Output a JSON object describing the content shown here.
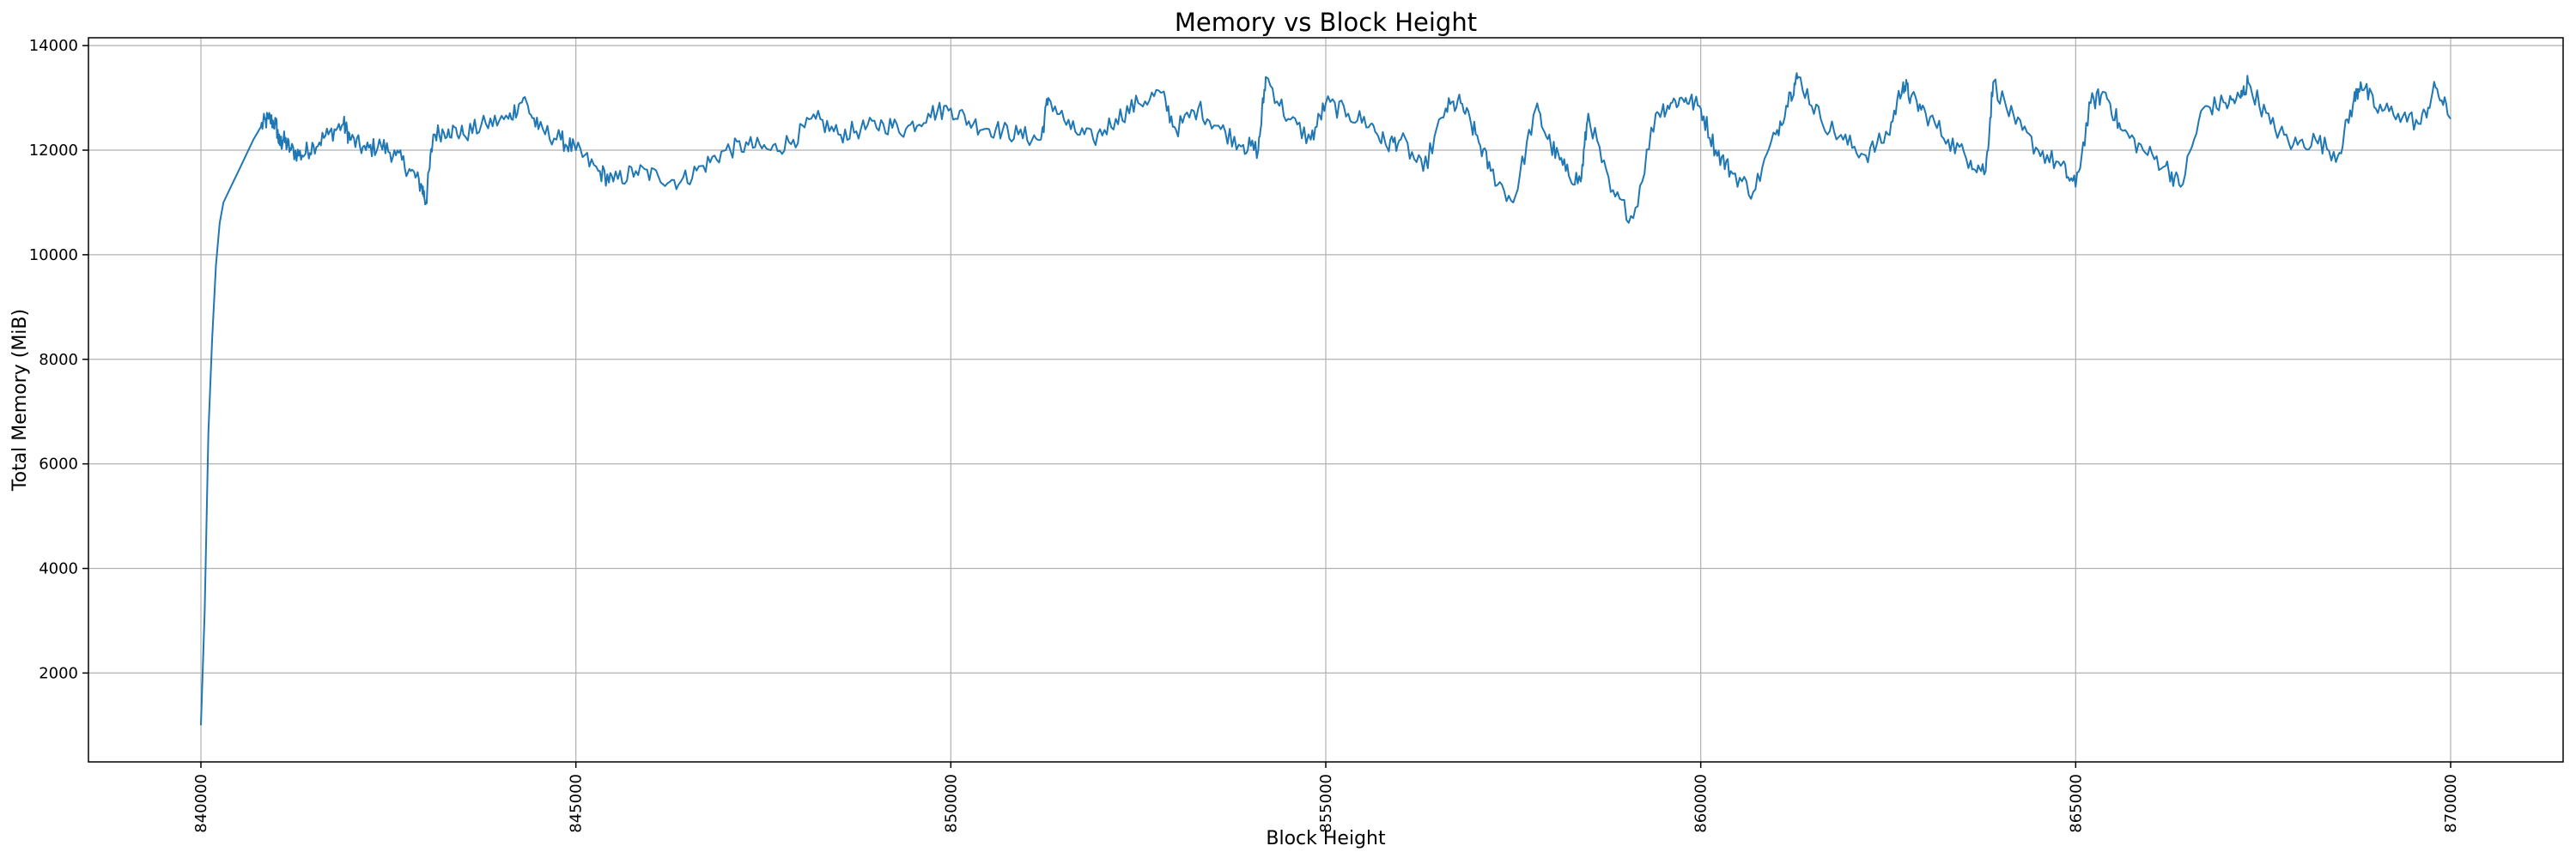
{
  "chart_data": {
    "type": "line",
    "title": "Memory vs Block Height",
    "xlabel": "Block Height",
    "ylabel": "Total Memory (MiB)",
    "xlim": [
      838500,
      871500
    ],
    "ylim": [
      300,
      14150
    ],
    "xticks": [
      840000,
      845000,
      850000,
      855000,
      860000,
      865000,
      870000
    ],
    "yticks": [
      2000,
      4000,
      6000,
      8000,
      10000,
      12000,
      14000
    ],
    "xtick_rotation": "vertical",
    "grid": true,
    "legend": "none",
    "series": [
      {
        "color": "#1f77b4",
        "x": [
          840000,
          840050,
          840100,
          840150,
          840200,
          840250,
          840300,
          840400,
          840500,
          840600,
          840700,
          840800,
          840900,
          841000,
          841050,
          841100,
          841200,
          841350,
          841500,
          841700,
          841900,
          842000,
          842200,
          842400,
          842600,
          842800,
          842950,
          843000,
          843100,
          843300,
          843500,
          843800,
          844100,
          844300,
          844500,
          844800,
          845000,
          845300,
          845500,
          845800,
          846100,
          846400,
          846700,
          847000,
          847300,
          847600,
          847900,
          848200,
          848500,
          848800,
          849100,
          849400,
          849700,
          850000,
          850300,
          850600,
          850900,
          851200,
          851300,
          851600,
          851900,
          852200,
          852500,
          852800,
          853000,
          853300,
          853600,
          853900,
          854100,
          854200,
          854500,
          854800,
          855000,
          855300,
          855600,
          855800,
          856000,
          856300,
          856600,
          856800,
          857000,
          857200,
          857500,
          857800,
          858000,
          858200,
          858400,
          858500,
          858800,
          859100,
          859400,
          859600,
          859800,
          860000,
          860200,
          860400,
          860700,
          861000,
          861200,
          861300,
          861600,
          861900,
          862200,
          862500,
          862700,
          862800,
          863000,
          863300,
          863600,
          863800,
          863900,
          864200,
          864500,
          864800,
          865000,
          865200,
          865400,
          865600,
          865900,
          866200,
          866400,
          866700,
          867000,
          867200,
          867300,
          867600,
          867900,
          868200,
          868500,
          868700,
          868800,
          869000,
          869300,
          869600,
          869800,
          870000
        ],
        "y": [
          1000,
          3200,
          6600,
          8400,
          9800,
          10600,
          11000,
          11300,
          11600,
          11900,
          12200,
          12450,
          12600,
          12500,
          12100,
          12200,
          12000,
          11900,
          12100,
          12300,
          12500,
          12200,
          12000,
          12100,
          11900,
          11600,
          11300,
          11000,
          12300,
          12400,
          12300,
          12500,
          12600,
          13000,
          12400,
          12200,
          12000,
          11600,
          11400,
          11600,
          11500,
          11400,
          11700,
          12000,
          12100,
          12000,
          12200,
          12600,
          12300,
          12400,
          12500,
          12400,
          12700,
          12800,
          12500,
          12400,
          12300,
          12200,
          13000,
          12400,
          12200,
          12600,
          12900,
          13100,
          12400,
          12800,
          12400,
          12100,
          12000,
          13400,
          12600,
          12200,
          12900,
          12700,
          12500,
          12100,
          12200,
          11600,
          12800,
          12900,
          12300,
          11600,
          11000,
          12800,
          12100,
          11600,
          11400,
          12700,
          11200,
          10700,
          12700,
          12900,
          13000,
          12800,
          12000,
          11600,
          11200,
          12300,
          13100,
          13400,
          12600,
          12200,
          11900,
          12300,
          13300,
          13000,
          12700,
          12200,
          11800,
          11600,
          13300,
          12500,
          12000,
          11700,
          11300,
          12900,
          13100,
          12400,
          12000,
          11700,
          11300,
          12800,
          12900,
          13000,
          13300,
          12500,
          12100,
          12200,
          11900,
          12900,
          13300,
          12800,
          12700,
          12500,
          13200,
          12600
        ]
      }
    ]
  }
}
